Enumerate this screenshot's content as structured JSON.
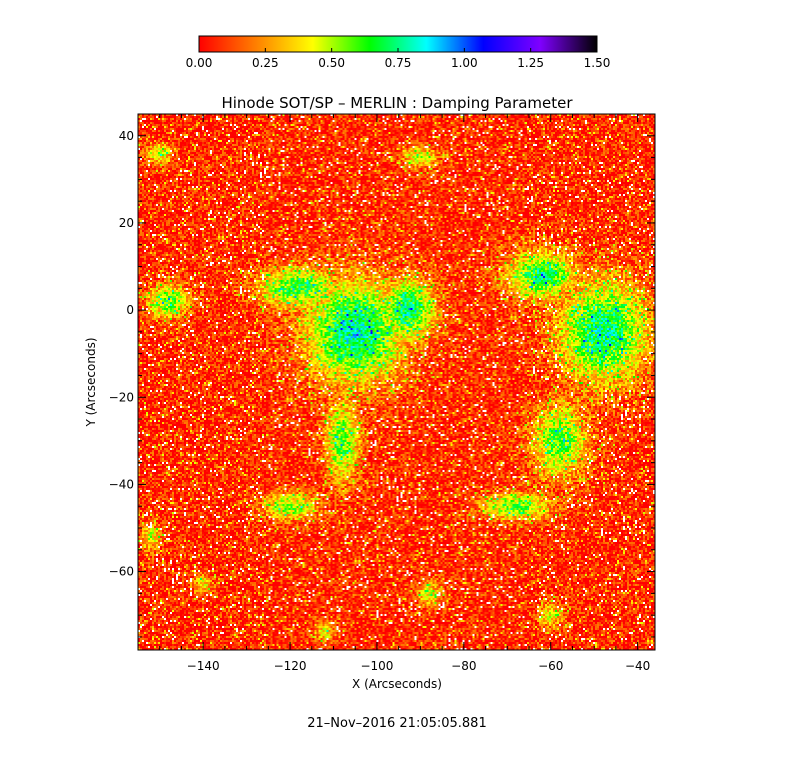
{
  "chart_data": {
    "type": "heatmap",
    "title": "Hinode SOT/SP – MERLIN : Damping Parameter",
    "xlabel": "X (Arcseconds)",
    "ylabel": "Y (Arcseconds)",
    "xlim": [
      -155,
      -36
    ],
    "ylim": [
      -78,
      45
    ],
    "x_ticks": [
      -140,
      -120,
      -100,
      -80,
      -60,
      -40
    ],
    "x_tick_labels": [
      "−140",
      "−120",
      "−100",
      "−80",
      "−60",
      "−40"
    ],
    "y_ticks": [
      40,
      20,
      0,
      -20,
      -40,
      -60
    ],
    "y_tick_labels": [
      "40",
      "20",
      "0",
      "−20",
      "−40",
      "−60"
    ],
    "colorbar": {
      "min": 0.0,
      "max": 1.5,
      "ticks": [
        0.0,
        0.25,
        0.5,
        0.75,
        1.0,
        1.25,
        1.5
      ],
      "tick_labels": [
        "0.00",
        "0.25",
        "0.50",
        "0.75",
        "1.00",
        "1.25",
        "1.50"
      ],
      "colormap_stops": [
        "#ff0000",
        "#ff7f00",
        "#ffff00",
        "#00ff00",
        "#00ffff",
        "#0000ff",
        "#7f00ff",
        "#000000"
      ]
    },
    "background_value": 0.05,
    "elevated_regions": [
      {
        "x": -105,
        "y": -5,
        "rx": 14,
        "ry": 15,
        "value": 0.8
      },
      {
        "x": -93,
        "y": 0,
        "rx": 8,
        "ry": 9,
        "value": 0.75
      },
      {
        "x": -118,
        "y": 5,
        "rx": 12,
        "ry": 6,
        "value": 0.65
      },
      {
        "x": -148,
        "y": 2,
        "rx": 6,
        "ry": 5,
        "value": 0.6
      },
      {
        "x": -108,
        "y": -30,
        "rx": 5,
        "ry": 12,
        "value": 0.6
      },
      {
        "x": -120,
        "y": -45,
        "rx": 8,
        "ry": 4,
        "value": 0.55
      },
      {
        "x": -48,
        "y": -5,
        "rx": 13,
        "ry": 15,
        "value": 0.75
      },
      {
        "x": -62,
        "y": 8,
        "rx": 10,
        "ry": 7,
        "value": 0.7
      },
      {
        "x": -58,
        "y": -30,
        "rx": 8,
        "ry": 11,
        "value": 0.6
      },
      {
        "x": -68,
        "y": -45,
        "rx": 10,
        "ry": 4,
        "value": 0.6
      },
      {
        "x": -90,
        "y": 35,
        "rx": 5,
        "ry": 3,
        "value": 0.5
      },
      {
        "x": -150,
        "y": 36,
        "rx": 4,
        "ry": 3,
        "value": 0.5
      },
      {
        "x": -152,
        "y": -52,
        "rx": 3,
        "ry": 4,
        "value": 0.45
      },
      {
        "x": -140,
        "y": -63,
        "rx": 3,
        "ry": 3,
        "value": 0.4
      },
      {
        "x": -88,
        "y": -65,
        "rx": 4,
        "ry": 4,
        "value": 0.4
      },
      {
        "x": -60,
        "y": -70,
        "rx": 4,
        "ry": 4,
        "value": 0.4
      },
      {
        "x": -112,
        "y": -74,
        "rx": 3,
        "ry": 3,
        "value": 0.4
      }
    ]
  },
  "footer": {
    "timestamp": "21–Nov–2016 21:05:05.881"
  }
}
